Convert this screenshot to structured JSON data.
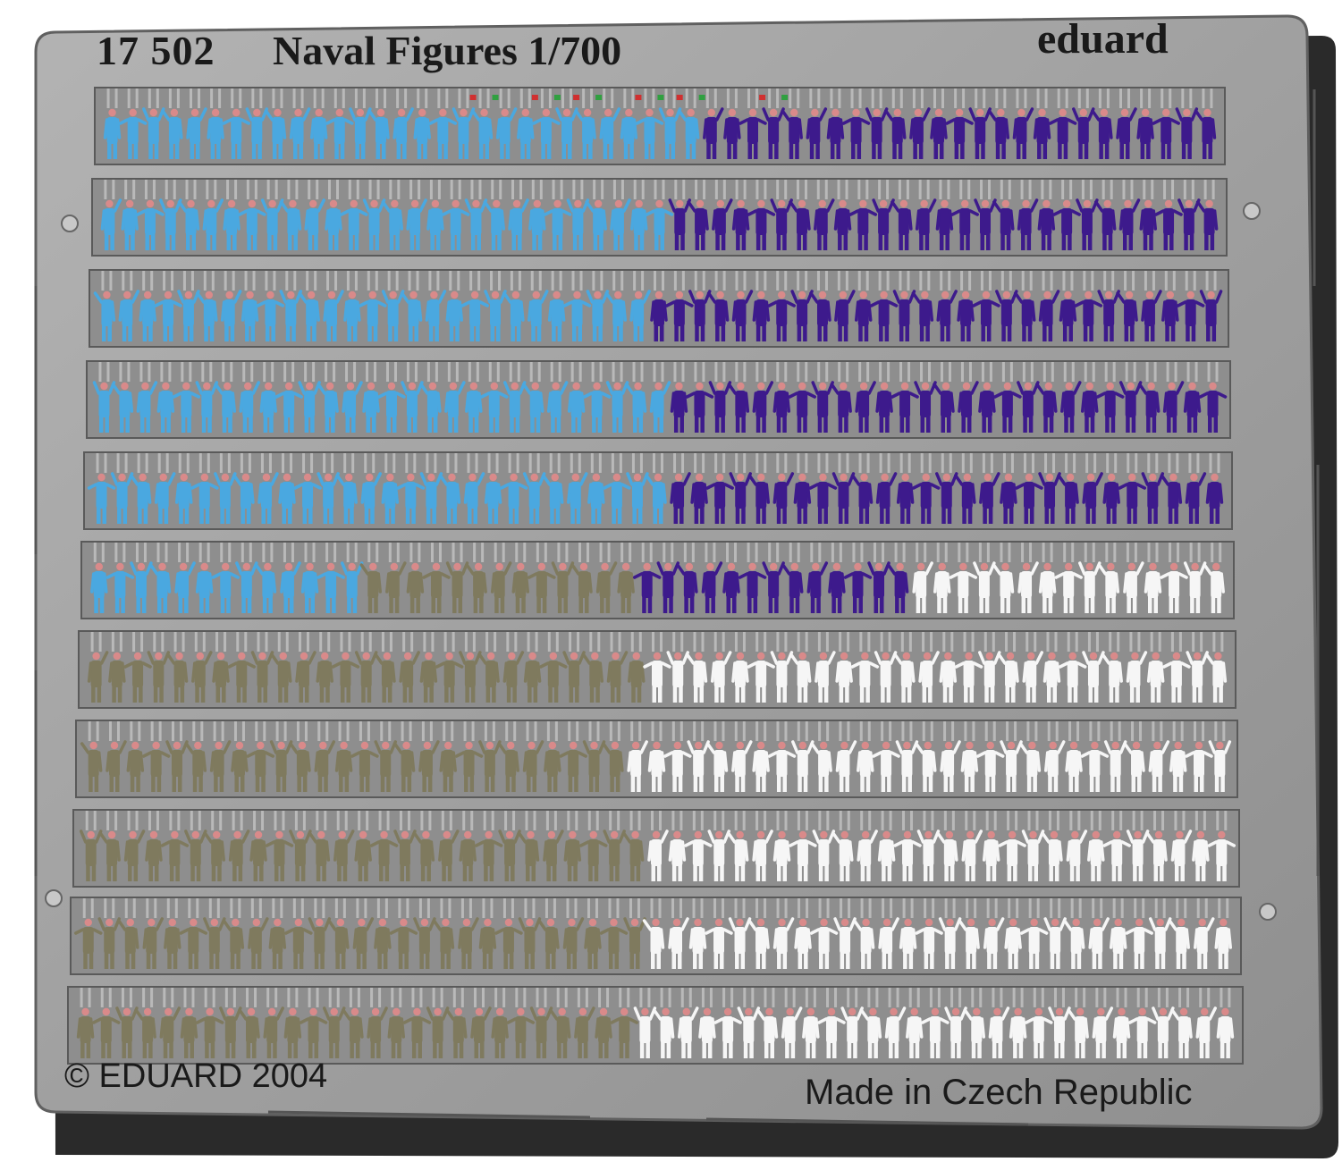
{
  "sheet": {
    "product_code": "17 502",
    "product_name": "Naval Figures 1/700",
    "brand": "eduard",
    "copyright": "© EDUARD 2004",
    "origin": "Made in Czech Republic"
  },
  "colors": {
    "fret": "#9c9c9c",
    "fret_edge": "#5a5a5a",
    "strip_bg": "#8e8e8e",
    "light_blue": "#4aa8e0",
    "purple": "#3d1a8c",
    "khaki": "#7f7a5e",
    "white": "#f6f6f6",
    "head": "#d98a8a",
    "flag_red": "#d03030",
    "flag_green": "#30a040"
  },
  "rows": [
    {
      "groups": [
        {
          "color": "light_blue",
          "count": 29
        },
        {
          "color": "purple",
          "count": 25
        }
      ]
    },
    {
      "groups": [
        {
          "color": "light_blue",
          "count": 28
        },
        {
          "color": "purple",
          "count": 27
        }
      ]
    },
    {
      "groups": [
        {
          "color": "light_blue",
          "count": 27
        },
        {
          "color": "purple",
          "count": 28
        }
      ]
    },
    {
      "groups": [
        {
          "color": "light_blue",
          "count": 28
        },
        {
          "color": "purple",
          "count": 27
        }
      ]
    },
    {
      "groups": [
        {
          "color": "light_blue",
          "count": 28
        },
        {
          "color": "purple",
          "count": 27
        }
      ]
    },
    {
      "groups": [
        {
          "color": "light_blue",
          "count": 13
        },
        {
          "color": "khaki",
          "count": 13
        },
        {
          "color": "purple",
          "count": 13
        },
        {
          "color": "white",
          "count": 15
        }
      ]
    },
    {
      "groups": [
        {
          "color": "khaki",
          "count": 27
        },
        {
          "color": "white",
          "count": 28
        }
      ]
    },
    {
      "groups": [
        {
          "color": "khaki",
          "count": 26
        },
        {
          "color": "white",
          "count": 29
        }
      ]
    },
    {
      "groups": [
        {
          "color": "khaki",
          "count": 27
        },
        {
          "color": "white",
          "count": 28
        }
      ]
    },
    {
      "groups": [
        {
          "color": "khaki",
          "count": 27
        },
        {
          "color": "white",
          "count": 28
        }
      ]
    },
    {
      "groups": [
        {
          "color": "khaki",
          "count": 27
        },
        {
          "color": "white",
          "count": 29
        }
      ]
    }
  ]
}
